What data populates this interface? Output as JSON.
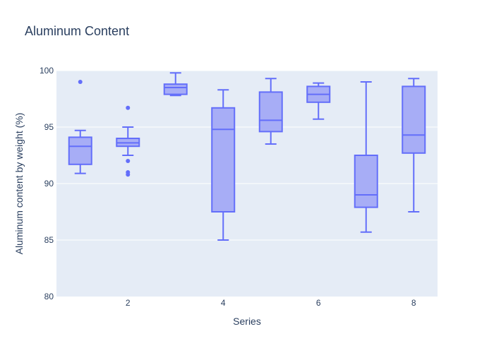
{
  "chart_data": {
    "type": "box",
    "title": "Aluminum Content",
    "xlabel": "Series",
    "ylabel": "Aluminum content by weight (%)",
    "xlim": [
      0.5,
      8.5
    ],
    "ylim": [
      80,
      100
    ],
    "x_ticks": [
      2,
      4,
      6,
      8
    ],
    "y_ticks": [
      80,
      85,
      90,
      95,
      100
    ],
    "grid": true,
    "legend": "none",
    "colors": {
      "plot_bg": "#e5ecf6",
      "grid": "#ffffff",
      "box_line": "#636efa",
      "box_fill": "#a7adf6",
      "text": "#2a3f5f"
    },
    "boxes": [
      {
        "x": 1,
        "q1": 91.7,
        "median": 93.3,
        "q3": 94.1,
        "lower_whisker": 90.9,
        "upper_whisker": 94.7,
        "outliers": [
          99.0
        ]
      },
      {
        "x": 2,
        "q1": 93.3,
        "median": 93.6,
        "q3": 94.0,
        "lower_whisker": 92.5,
        "upper_whisker": 95.0,
        "outliers": [
          96.7,
          92.0,
          91.0,
          90.8
        ]
      },
      {
        "x": 3,
        "q1": 97.9,
        "median": 98.5,
        "q3": 98.8,
        "lower_whisker": 97.8,
        "upper_whisker": 99.8,
        "outliers": []
      },
      {
        "x": 4,
        "q1": 87.5,
        "median": 94.8,
        "q3": 96.7,
        "lower_whisker": 85.0,
        "upper_whisker": 98.3,
        "outliers": []
      },
      {
        "x": 5,
        "q1": 94.6,
        "median": 95.6,
        "q3": 98.1,
        "lower_whisker": 93.5,
        "upper_whisker": 99.3,
        "outliers": []
      },
      {
        "x": 6,
        "q1": 97.2,
        "median": 97.9,
        "q3": 98.6,
        "lower_whisker": 95.7,
        "upper_whisker": 98.9,
        "outliers": []
      },
      {
        "x": 7,
        "q1": 87.9,
        "median": 89.0,
        "q3": 92.5,
        "lower_whisker": 85.7,
        "upper_whisker": 99.0,
        "outliers": []
      },
      {
        "x": 8,
        "q1": 92.7,
        "median": 94.3,
        "q3": 98.6,
        "lower_whisker": 87.5,
        "upper_whisker": 99.3,
        "outliers": []
      }
    ]
  }
}
